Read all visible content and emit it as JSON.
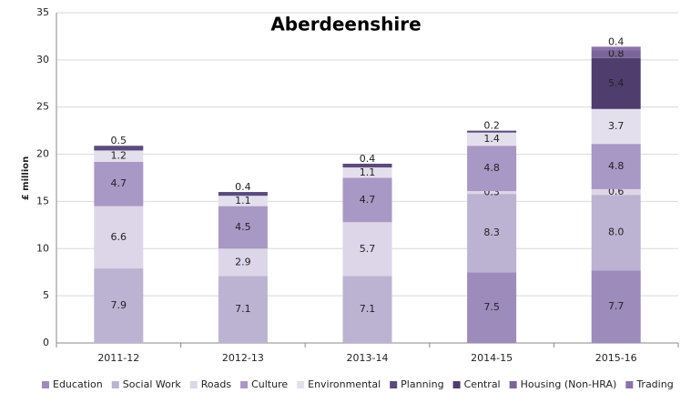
{
  "chart_data": {
    "type": "stacked-bar",
    "title": "Aberdeenshire",
    "y_label": "£ million",
    "categories": [
      "2011-12",
      "2012-13",
      "2013-14",
      "2014-15",
      "2015-16"
    ],
    "series": [
      {
        "name": "Education",
        "color": "#9d8bbc",
        "values": [
          null,
          null,
          null,
          7.5,
          7.7
        ],
        "value_labels": [
          null,
          null,
          null,
          "7.5",
          "7.7"
        ]
      },
      {
        "name": "Social Work",
        "color": "#bcb3d3",
        "values": [
          7.9,
          7.1,
          7.1,
          8.3,
          8.0
        ],
        "value_labels": [
          "7.9",
          "7.1",
          "7.1",
          "8.3",
          "8.0"
        ]
      },
      {
        "name": "Roads",
        "color": "#dcd6e8",
        "values": [
          6.6,
          2.9,
          5.7,
          0.3,
          0.6
        ],
        "value_labels": [
          "6.6",
          "2.9",
          "5.7",
          "0.3",
          "0.6"
        ]
      },
      {
        "name": "Culture",
        "color": "#a898c5",
        "values": [
          4.7,
          4.5,
          4.7,
          4.8,
          4.8
        ],
        "value_labels": [
          "4.7",
          "4.5",
          "4.7",
          "4.8",
          "4.8"
        ]
      },
      {
        "name": "Environmental",
        "color": "#e4dfec",
        "values": [
          1.2,
          1.1,
          1.1,
          1.4,
          3.7
        ],
        "value_labels": [
          "1.2",
          "1.1",
          "1.1",
          "1.4",
          "3.7"
        ]
      },
      {
        "name": "Planning",
        "color": "#5b4a7c",
        "values": [
          0.5,
          0.4,
          0.4,
          0.2,
          null
        ],
        "value_labels": [
          "0.5",
          "0.4",
          "0.4",
          "0.2",
          null
        ]
      },
      {
        "name": "Central",
        "color": "#4f3d6e",
        "values": [
          null,
          null,
          null,
          null,
          5.4
        ],
        "value_labels": [
          null,
          null,
          null,
          null,
          "5.4"
        ]
      },
      {
        "name": "Housing (Non-HRA)",
        "color": "#7a6499",
        "values": [
          null,
          null,
          null,
          null,
          0.8
        ],
        "value_labels": [
          null,
          null,
          null,
          null,
          "0.8"
        ]
      },
      {
        "name": "Trading",
        "color": "#8b73aa",
        "values": [
          null,
          null,
          null,
          null,
          0.4
        ],
        "value_labels": [
          null,
          null,
          null,
          null,
          "0.4"
        ]
      }
    ],
    "ylim": [
      0,
      35
    ],
    "yticks": [
      0,
      5,
      10,
      15,
      20,
      25,
      30,
      35
    ],
    "grid": true,
    "legend": "bottom"
  }
}
